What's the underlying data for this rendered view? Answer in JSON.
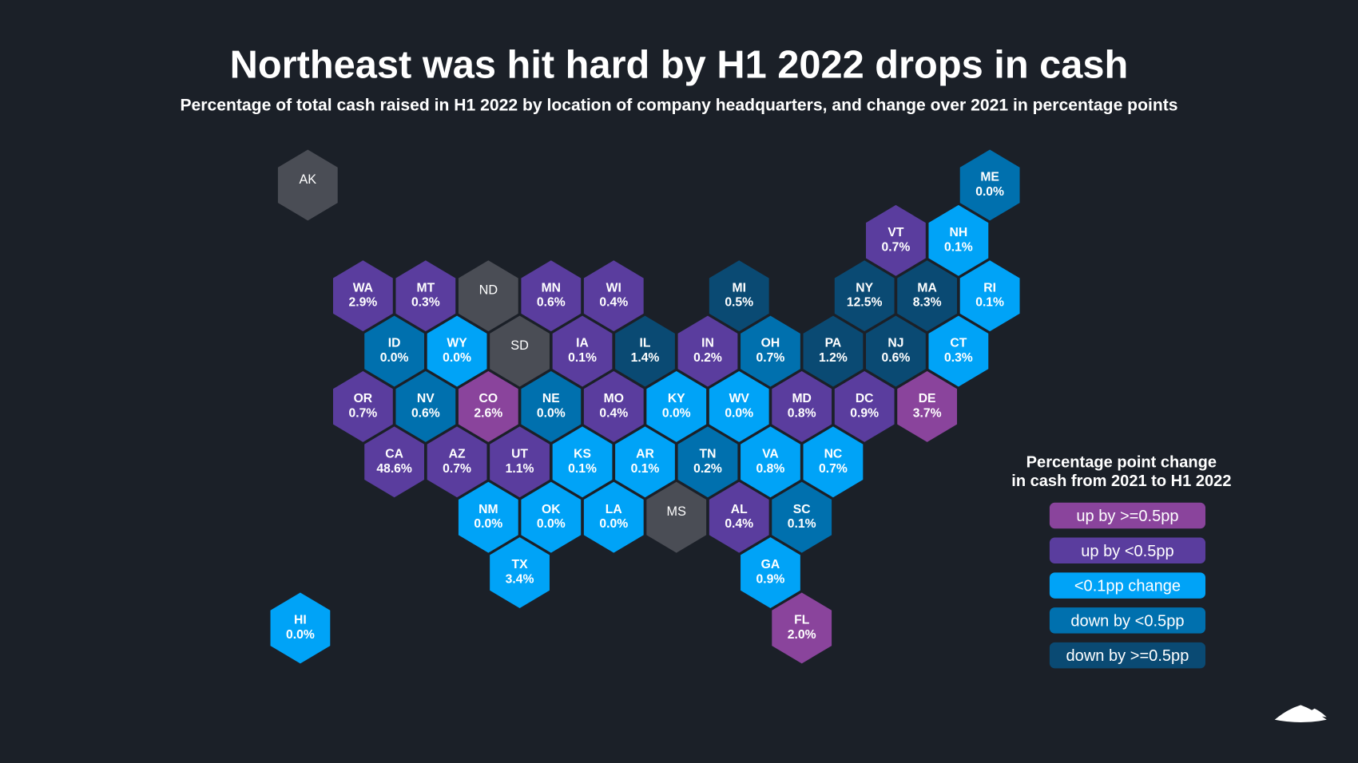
{
  "title": "Northeast was hit hard by H1 2022 drops in cash",
  "subtitle": "Percentage of total cash raised in H1 2022 by location of company headquarters, and change over 2021 in percentage points",
  "legend": {
    "title_line1": "Percentage point change",
    "title_line2": "in cash from 2021 to H1 2022",
    "items": [
      {
        "key": "u2",
        "label": "up by >=0.5pp",
        "color": "#8a449c"
      },
      {
        "key": "u1",
        "label": "up by <0.5pp",
        "color": "#5a3d9e"
      },
      {
        "key": "n",
        "label": "<0.1pp change",
        "color": "#00a3f7"
      },
      {
        "key": "d1",
        "label": "down by <0.5pp",
        "color": "#0070ae"
      },
      {
        "key": "d2",
        "label": "down by >=0.5pp",
        "color": "#0a4a73"
      }
    ]
  },
  "no_data_color": "#4a4d55",
  "background_color": "#1b2028",
  "chart_data": {
    "type": "hex-tile-map",
    "title": "Northeast was hit hard by H1 2022 drops in cash",
    "states": [
      {
        "code": "AK",
        "value": null,
        "category": "g"
      },
      {
        "code": "ME",
        "value": "0.0%",
        "category": "d1"
      },
      {
        "code": "VT",
        "value": "0.7%",
        "category": "u1"
      },
      {
        "code": "NH",
        "value": "0.1%",
        "category": "n"
      },
      {
        "code": "WA",
        "value": "2.9%",
        "category": "u1"
      },
      {
        "code": "MT",
        "value": "0.3%",
        "category": "u1"
      },
      {
        "code": "ND",
        "value": null,
        "category": "g"
      },
      {
        "code": "MN",
        "value": "0.6%",
        "category": "u1"
      },
      {
        "code": "WI",
        "value": "0.4%",
        "category": "u1"
      },
      {
        "code": "MI",
        "value": "0.5%",
        "category": "d2"
      },
      {
        "code": "NY",
        "value": "12.5%",
        "category": "d2"
      },
      {
        "code": "MA",
        "value": "8.3%",
        "category": "d2"
      },
      {
        "code": "RI",
        "value": "0.1%",
        "category": "n"
      },
      {
        "code": "ID",
        "value": "0.0%",
        "category": "d1"
      },
      {
        "code": "WY",
        "value": "0.0%",
        "category": "n"
      },
      {
        "code": "SD",
        "value": null,
        "category": "g"
      },
      {
        "code": "IA",
        "value": "0.1%",
        "category": "u1"
      },
      {
        "code": "IL",
        "value": "1.4%",
        "category": "d2"
      },
      {
        "code": "IN",
        "value": "0.2%",
        "category": "u1"
      },
      {
        "code": "OH",
        "value": "0.7%",
        "category": "d1"
      },
      {
        "code": "PA",
        "value": "1.2%",
        "category": "d2"
      },
      {
        "code": "NJ",
        "value": "0.6%",
        "category": "d2"
      },
      {
        "code": "CT",
        "value": "0.3%",
        "category": "n"
      },
      {
        "code": "OR",
        "value": "0.7%",
        "category": "u1"
      },
      {
        "code": "NV",
        "value": "0.6%",
        "category": "d1"
      },
      {
        "code": "CO",
        "value": "2.6%",
        "category": "u2"
      },
      {
        "code": "NE",
        "value": "0.0%",
        "category": "d1"
      },
      {
        "code": "MO",
        "value": "0.4%",
        "category": "u1"
      },
      {
        "code": "KY",
        "value": "0.0%",
        "category": "n"
      },
      {
        "code": "WV",
        "value": "0.0%",
        "category": "n"
      },
      {
        "code": "MD",
        "value": "0.8%",
        "category": "u1"
      },
      {
        "code": "DC",
        "value": "0.9%",
        "category": "u1"
      },
      {
        "code": "DE",
        "value": "3.7%",
        "category": "u2"
      },
      {
        "code": "CA",
        "value": "48.6%",
        "category": "u1"
      },
      {
        "code": "AZ",
        "value": "0.7%",
        "category": "u1"
      },
      {
        "code": "UT",
        "value": "1.1%",
        "category": "u1"
      },
      {
        "code": "KS",
        "value": "0.1%",
        "category": "n"
      },
      {
        "code": "AR",
        "value": "0.1%",
        "category": "n"
      },
      {
        "code": "TN",
        "value": "0.2%",
        "category": "d1"
      },
      {
        "code": "VA",
        "value": "0.8%",
        "category": "n"
      },
      {
        "code": "NC",
        "value": "0.7%",
        "category": "n"
      },
      {
        "code": "NM",
        "value": "0.0%",
        "category": "n"
      },
      {
        "code": "OK",
        "value": "0.0%",
        "category": "n"
      },
      {
        "code": "LA",
        "value": "0.0%",
        "category": "n"
      },
      {
        "code": "MS",
        "value": null,
        "category": "g"
      },
      {
        "code": "AL",
        "value": "0.4%",
        "category": "u1"
      },
      {
        "code": "SC",
        "value": "0.1%",
        "category": "d1"
      },
      {
        "code": "TX",
        "value": "3.4%",
        "category": "n"
      },
      {
        "code": "GA",
        "value": "0.9%",
        "category": "n"
      },
      {
        "code": "HI",
        "value": "0.0%",
        "category": "n"
      },
      {
        "code": "FL",
        "value": "2.0%",
        "category": "u2"
      }
    ]
  }
}
